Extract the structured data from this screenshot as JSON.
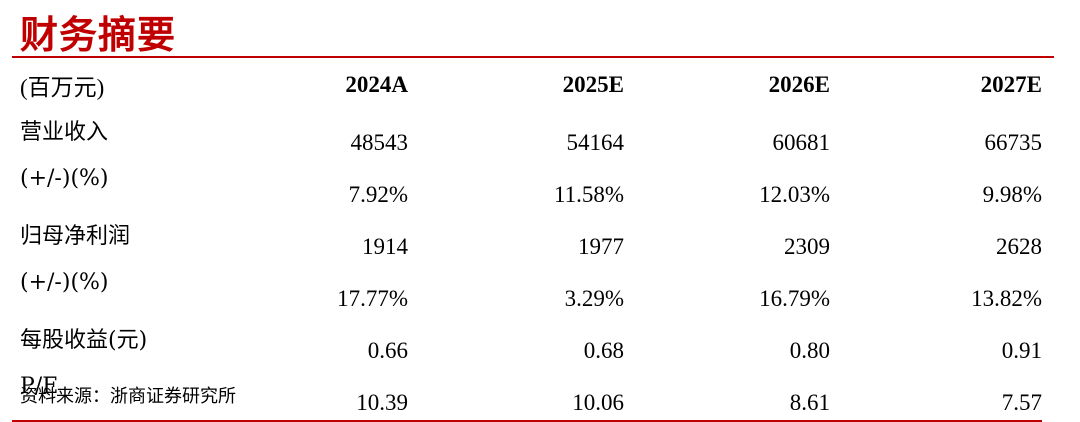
{
  "title": "财务摘要",
  "table": {
    "header": [
      "(百万元)",
      "2024A",
      "2025E",
      "2026E",
      "2027E"
    ],
    "rows": [
      {
        "label": "营业收入",
        "values": [
          "48543",
          "54164",
          "60681",
          "66735"
        ]
      },
      {
        "label": "(+/-)(%)",
        "values": [
          "7.92%",
          "11.58%",
          "12.03%",
          "9.98%"
        ]
      },
      {
        "label": "归母净利润",
        "values": [
          "1914",
          "1977",
          "2309",
          "2628"
        ]
      },
      {
        "label": "(+/-)(%)",
        "values": [
          "17.77%",
          "3.29%",
          "16.79%",
          "13.82%"
        ]
      },
      {
        "label": "每股收益(元)",
        "values": [
          "0.66",
          "0.68",
          "0.80",
          "0.91"
        ]
      },
      {
        "label": "P/E",
        "values": [
          "10.39",
          "10.06",
          "8.61",
          "7.57"
        ]
      }
    ]
  },
  "source": "资料来源：浙商证券研究所",
  "colors": {
    "accent": "#c00000",
    "text": "#000000"
  }
}
